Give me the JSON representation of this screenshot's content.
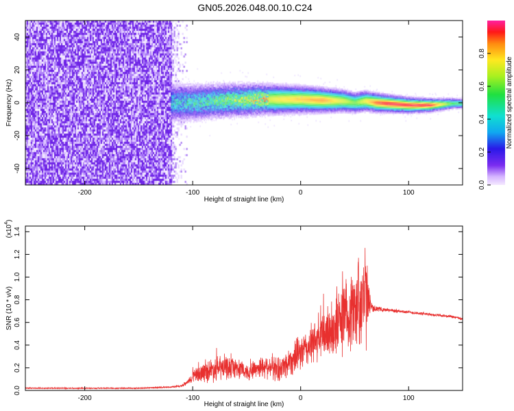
{
  "title": "GN05.2026.048.00.10.C24",
  "colors": {
    "signal": "#e8302f",
    "noise": "#6a1fe6",
    "band_low": "#4b16e0",
    "band_mid": "#19d36a",
    "band_high": "#ff2e2e"
  },
  "chart_data": [
    {
      "type": "heatmap",
      "title": "GN05.2026.048.00.10.C24",
      "xlabel": "Height of straight line (km)",
      "ylabel": "Frequency (Hz)",
      "xlim": [
        -255,
        150
      ],
      "ylim": [
        -50,
        50
      ],
      "xticks": [
        -200,
        -100,
        0,
        100
      ],
      "yticks": [
        -40,
        -20,
        0,
        20,
        40
      ],
      "colorbar": {
        "label": "Normalized spectral amplitude",
        "range": [
          0,
          1
        ],
        "ticks": [
          "0.0",
          "0.2",
          "0.4",
          "0.6",
          "0.8"
        ],
        "tick_values": [
          0,
          0.2,
          0.4,
          0.6,
          0.8
        ]
      },
      "regions": [
        {
          "name": "broadband noise",
          "x_range": [
            -255,
            -120
          ],
          "freq_range": [
            -50,
            50
          ],
          "amplitude": 0.1
        },
        {
          "name": "decaying noise edge",
          "x_range": [
            -120,
            -105
          ],
          "freq_range": [
            -50,
            50
          ],
          "amplitude": 0.05
        },
        {
          "name": "narrowband signal",
          "x_range": [
            -120,
            150
          ],
          "center_freq": 0,
          "halfwidth_hz": [
            8,
            2
          ],
          "peak_amplitude": 1.0
        }
      ],
      "band_profile": {
        "x": [
          -120,
          -100,
          -80,
          -60,
          -40,
          -20,
          0,
          20,
          40,
          50,
          60,
          70,
          80,
          100,
          120,
          140,
          150
        ],
        "center_freq": [
          0,
          0,
          1,
          1.5,
          2,
          2,
          2,
          1.5,
          1,
          0,
          1,
          0,
          -0.5,
          -1.5,
          -1.5,
          -0.5,
          -0.5
        ],
        "amplitude": [
          0.35,
          0.4,
          0.45,
          0.55,
          0.65,
          0.75,
          0.8,
          0.85,
          0.7,
          0.6,
          0.75,
          0.9,
          0.95,
          0.95,
          0.95,
          0.55,
          0.5
        ]
      }
    },
    {
      "type": "line",
      "xlabel": "Height of straight line (km)",
      "ylabel": "SNR (10 * v/v)",
      "y_multiplier": "(x10",
      "y_multiplier_exp": "4",
      "xlim": [
        -255,
        150
      ],
      "ylim": [
        0,
        1.45
      ],
      "xticks": [
        -200,
        -100,
        0,
        100
      ],
      "yticks": [
        0.0,
        0.2,
        0.4,
        0.6,
        0.8,
        1.0,
        1.2,
        1.4
      ],
      "series": [
        {
          "name": "SNR",
          "x": [
            -255,
            -200,
            -150,
            -120,
            -110,
            -105,
            -100,
            -90,
            -80,
            -70,
            -60,
            -50,
            -40,
            -30,
            -20,
            -10,
            0,
            10,
            20,
            30,
            40,
            50,
            55,
            60,
            65,
            70,
            80,
            90,
            100,
            110,
            120,
            130,
            140,
            150
          ],
          "values": [
            0.02,
            0.02,
            0.02,
            0.03,
            0.04,
            0.07,
            0.12,
            0.16,
            0.19,
            0.2,
            0.2,
            0.16,
            0.2,
            0.22,
            0.18,
            0.26,
            0.33,
            0.4,
            0.48,
            0.55,
            0.65,
            0.72,
            0.8,
            0.82,
            0.74,
            0.72,
            0.71,
            0.7,
            0.69,
            0.68,
            0.67,
            0.66,
            0.65,
            0.63
          ],
          "noise_amplitude": [
            0.005,
            0.005,
            0.005,
            0.006,
            0.01,
            0.02,
            0.05,
            0.08,
            0.1,
            0.1,
            0.08,
            0.07,
            0.08,
            0.1,
            0.1,
            0.12,
            0.14,
            0.16,
            0.2,
            0.25,
            0.3,
            0.32,
            0.4,
            0.45,
            0.04,
            0.02,
            0.015,
            0.015,
            0.012,
            0.012,
            0.012,
            0.012,
            0.012,
            0.012
          ]
        }
      ]
    }
  ]
}
